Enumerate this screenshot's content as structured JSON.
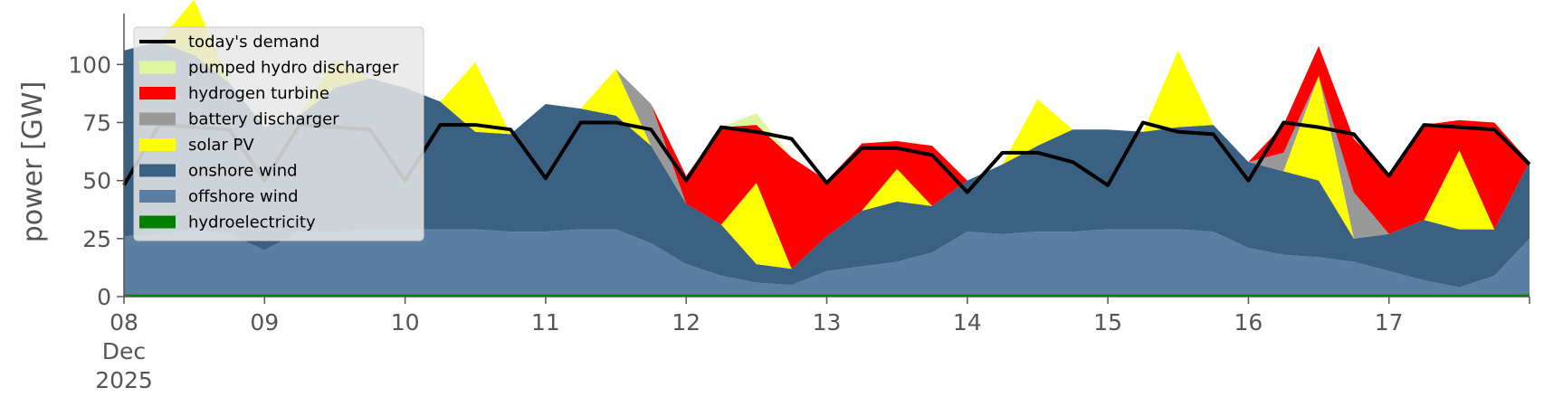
{
  "chart_data": {
    "type": "area",
    "stacked": true,
    "title": "",
    "xlabel": "",
    "ylabel": "power [GW]",
    "ylim": [
      0,
      120
    ],
    "xlim": [
      "2025-12-08T00:00",
      "2025-12-18T00:00"
    ],
    "grid": false,
    "legend_position": "top-left",
    "y_ticks": [
      {
        "value": 0,
        "label": "0"
      },
      {
        "value": 25,
        "label": "25"
      },
      {
        "value": 50,
        "label": "50"
      },
      {
        "value": 75,
        "label": "75"
      },
      {
        "value": 100,
        "label": "100"
      }
    ],
    "x_ticks": [
      {
        "date": "2025-12-08",
        "label": "08",
        "sub1": "Dec",
        "sub2": "2025"
      },
      {
        "date": "2025-12-09",
        "label": "09"
      },
      {
        "date": "2025-12-10",
        "label": "10"
      },
      {
        "date": "2025-12-11",
        "label": "11"
      },
      {
        "date": "2025-12-12",
        "label": "12"
      },
      {
        "date": "2025-12-13",
        "label": "13"
      },
      {
        "date": "2025-12-14",
        "label": "14"
      },
      {
        "date": "2025-12-15",
        "label": "15"
      },
      {
        "date": "2025-12-16",
        "label": "16"
      },
      {
        "date": "2025-12-17",
        "label": "17"
      }
    ],
    "x": [
      "2025-12-08T00:00",
      "2025-12-08T06:00",
      "2025-12-08T12:00",
      "2025-12-08T18:00",
      "2025-12-09T00:00",
      "2025-12-09T06:00",
      "2025-12-09T12:00",
      "2025-12-09T18:00",
      "2025-12-10T00:00",
      "2025-12-10T06:00",
      "2025-12-10T12:00",
      "2025-12-10T18:00",
      "2025-12-11T00:00",
      "2025-12-11T06:00",
      "2025-12-11T12:00",
      "2025-12-11T18:00",
      "2025-12-12T00:00",
      "2025-12-12T06:00",
      "2025-12-12T12:00",
      "2025-12-12T18:00",
      "2025-12-13T00:00",
      "2025-12-13T06:00",
      "2025-12-13T12:00",
      "2025-12-13T18:00",
      "2025-12-14T00:00",
      "2025-12-14T06:00",
      "2025-12-14T12:00",
      "2025-12-14T18:00",
      "2025-12-15T00:00",
      "2025-12-15T06:00",
      "2025-12-15T12:00",
      "2025-12-15T18:00",
      "2025-12-16T00:00",
      "2025-12-16T06:00",
      "2025-12-16T12:00",
      "2025-12-16T18:00",
      "2025-12-17T00:00",
      "2025-12-17T06:00",
      "2025-12-17T12:00",
      "2025-12-17T18:00",
      "2025-12-18T00:00"
    ],
    "series": [
      {
        "name": "hydroelectricity",
        "color": "#008000",
        "values": [
          1,
          1,
          1,
          1,
          1,
          1,
          1,
          1,
          1,
          1,
          1,
          1,
          1,
          1,
          1,
          1,
          1,
          1,
          1,
          1,
          1,
          1,
          1,
          1,
          1,
          1,
          1,
          1,
          1,
          1,
          1,
          1,
          1,
          1,
          1,
          1,
          1,
          1,
          1,
          1,
          1
        ]
      },
      {
        "name": "offshore wind",
        "color": "#5b7fa3",
        "values": [
          25,
          26,
          28,
          26,
          19,
          27,
          27,
          28,
          28,
          28,
          28,
          27,
          27,
          28,
          28,
          22,
          13,
          8,
          5,
          4,
          10,
          12,
          14,
          18,
          27,
          26,
          27,
          27,
          28,
          28,
          28,
          27,
          20,
          17,
          16,
          14,
          10,
          6,
          3,
          8,
          24
        ]
      },
      {
        "name": "onshore wind",
        "color": "#3b6182",
        "values": [
          80,
          83,
          75,
          65,
          53,
          50,
          62,
          65,
          61,
          55,
          42,
          42,
          55,
          52,
          49,
          42,
          26,
          22,
          8,
          7,
          15,
          24,
          26,
          20,
          22,
          30,
          37,
          44,
          43,
          42,
          44,
          46,
          37,
          36,
          33,
          10,
          16,
          26,
          25,
          20,
          33
        ]
      },
      {
        "name": "solar PV",
        "color": "#ffff00",
        "values": [
          0,
          0,
          24,
          0,
          0,
          0,
          12,
          0,
          0,
          0,
          30,
          0,
          0,
          0,
          20,
          0,
          0,
          0,
          35,
          0,
          0,
          0,
          14,
          0,
          0,
          0,
          20,
          0,
          0,
          0,
          33,
          0,
          0,
          0,
          45,
          0,
          0,
          0,
          34,
          0,
          0
        ]
      },
      {
        "name": "battery discharger",
        "color": "#999999",
        "values": [
          0,
          0,
          0,
          0,
          0,
          0,
          0,
          0,
          0,
          0,
          0,
          0,
          0,
          0,
          0,
          18,
          0,
          0,
          0,
          0,
          0,
          0,
          0,
          0,
          0,
          0,
          0,
          0,
          0,
          0,
          0,
          0,
          0,
          8,
          0,
          20,
          0,
          0,
          0,
          0,
          0
        ]
      },
      {
        "name": "hydrogen turbine",
        "color": "#ff0000",
        "values": [
          0,
          0,
          0,
          0,
          0,
          0,
          0,
          0,
          0,
          0,
          0,
          0,
          0,
          0,
          0,
          0,
          12,
          42,
          25,
          48,
          24,
          29,
          12,
          26,
          0,
          0,
          0,
          0,
          0,
          0,
          0,
          0,
          0,
          12,
          13,
          23,
          26,
          41,
          13,
          46,
          0
        ]
      },
      {
        "name": "pumped hydro discharger",
        "color": "#ddf7a0",
        "values": [
          0,
          0,
          0,
          0,
          0,
          0,
          0,
          0,
          0,
          0,
          0,
          0,
          0,
          0,
          0,
          0,
          0,
          0,
          5,
          0,
          0,
          0,
          0,
          0,
          0,
          0,
          0,
          0,
          0,
          0,
          0,
          0,
          0,
          0,
          0,
          0,
          0,
          0,
          0,
          0,
          0
        ]
      }
    ],
    "demand": {
      "name": "today's demand",
      "color": "#000000",
      "values": [
        48,
        74,
        73,
        72,
        50,
        74,
        73,
        72,
        50,
        74,
        74,
        72,
        51,
        75,
        75,
        72,
        50,
        73,
        71,
        68,
        49,
        64,
        64,
        61,
        45,
        62,
        62,
        58,
        48,
        75,
        71,
        70,
        50,
        75,
        73,
        70,
        52,
        74,
        73,
        72,
        57
      ]
    },
    "legend": [
      {
        "label": "today's demand",
        "kind": "line",
        "color": "#000000"
      },
      {
        "label": "pumped hydro discharger",
        "kind": "patch",
        "color": "#ddf7a0"
      },
      {
        "label": "hydrogen turbine",
        "kind": "patch",
        "color": "#ff0000"
      },
      {
        "label": "battery discharger",
        "kind": "patch",
        "color": "#999999"
      },
      {
        "label": "solar PV",
        "kind": "patch",
        "color": "#ffff00"
      },
      {
        "label": "onshore wind",
        "kind": "patch",
        "color": "#3b6182"
      },
      {
        "label": "offshore wind",
        "kind": "patch",
        "color": "#5b7fa3"
      },
      {
        "label": "hydroelectricity",
        "kind": "patch",
        "color": "#008000"
      }
    ]
  }
}
